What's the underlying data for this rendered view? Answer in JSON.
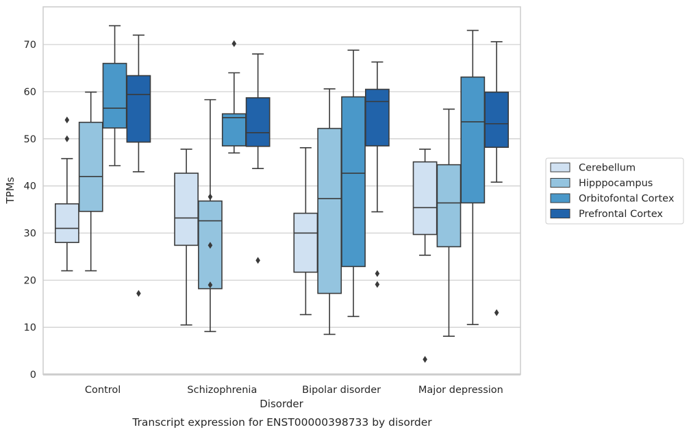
{
  "chart_data": {
    "type": "box",
    "xlabel": "Disorder",
    "ylabel": "TPMs",
    "caption": "Transcript expression for ENST00000398733 by disorder",
    "ylim": [
      0,
      78
    ],
    "yticks": [
      0,
      10,
      20,
      30,
      40,
      50,
      60,
      70
    ],
    "grid": "horizontal",
    "legend_position": "right",
    "categories": [
      "Control",
      "Schizophrenia",
      "Bipolar disorder",
      "Major depression"
    ],
    "series": [
      {
        "name": "Cerebellum",
        "color": "#d0e1f2",
        "boxes": [
          {
            "whisker_low": 22,
            "q1": 28,
            "median": 31,
            "q3": 36.2,
            "whisker_high": 45.8,
            "outliers": [
              50,
              54
            ]
          },
          {
            "whisker_low": 10.5,
            "q1": 27.4,
            "median": 33.2,
            "q3": 42.7,
            "whisker_high": 47.8,
            "outliers": []
          },
          {
            "whisker_low": 12.7,
            "q1": 21.7,
            "median": 30,
            "q3": 34.2,
            "whisker_high": 48.1,
            "outliers": []
          },
          {
            "whisker_low": 25.3,
            "q1": 29.7,
            "median": 35.4,
            "q3": 45.1,
            "whisker_high": 47.8,
            "outliers": [
              3.2
            ]
          }
        ]
      },
      {
        "name": "Hipppocampus",
        "color": "#94c4df",
        "boxes": [
          {
            "whisker_low": 22,
            "q1": 34.6,
            "median": 42,
            "q3": 53.5,
            "whisker_high": 59.9,
            "outliers": []
          },
          {
            "whisker_low": 9.1,
            "q1": 18.2,
            "median": 32.6,
            "q3": 36.8,
            "whisker_high": 58.3,
            "outliers": [
              19,
              27.4,
              37.7
            ]
          },
          {
            "whisker_low": 8.5,
            "q1": 17.2,
            "median": 37.3,
            "q3": 52.2,
            "whisker_high": 60.6,
            "outliers": []
          },
          {
            "whisker_low": 8.1,
            "q1": 27.1,
            "median": 36.4,
            "q3": 44.5,
            "whisker_high": 56.3,
            "outliers": []
          }
        ]
      },
      {
        "name": "Orbitofontal Cortex",
        "color": "#4a98c9",
        "boxes": [
          {
            "whisker_low": 44.3,
            "q1": 52.3,
            "median": 56.5,
            "q3": 66,
            "whisker_high": 74,
            "outliers": []
          },
          {
            "whisker_low": 47,
            "q1": 48.5,
            "median": 54.5,
            "q3": 55.3,
            "whisker_high": 64,
            "outliers": [
              70.2
            ]
          },
          {
            "whisker_low": 12.3,
            "q1": 22.9,
            "median": 42.7,
            "q3": 58.9,
            "whisker_high": 68.8,
            "outliers": []
          },
          {
            "whisker_low": 10.6,
            "q1": 36.4,
            "median": 53.6,
            "q3": 63.1,
            "whisker_high": 73,
            "outliers": []
          }
        ]
      },
      {
        "name": "Prefrontal Cortex",
        "color": "#2163aa",
        "boxes": [
          {
            "whisker_low": 43,
            "q1": 49.3,
            "median": 59.4,
            "q3": 63.4,
            "whisker_high": 72,
            "outliers": [
              17.2
            ]
          },
          {
            "whisker_low": 43.7,
            "q1": 48.4,
            "median": 51.3,
            "q3": 58.7,
            "whisker_high": 68,
            "outliers": [
              24.2
            ]
          },
          {
            "whisker_low": 34.5,
            "q1": 48.5,
            "median": 57.9,
            "q3": 60.5,
            "whisker_high": 66.3,
            "outliers": [
              19.1,
              21.4
            ]
          },
          {
            "whisker_low": 40.8,
            "q1": 48.2,
            "median": 53.2,
            "q3": 59.9,
            "whisker_high": 70.6,
            "outliers": [
              13.1
            ]
          }
        ]
      }
    ]
  }
}
